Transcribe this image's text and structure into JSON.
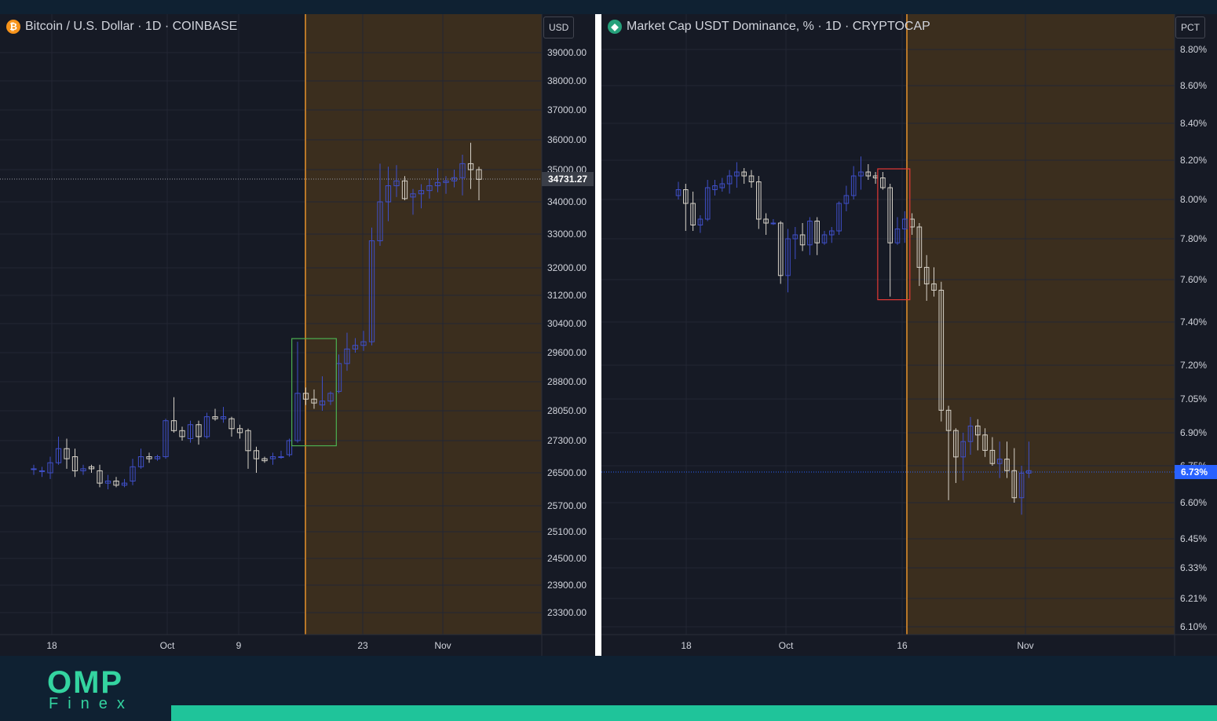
{
  "chart_data": [
    {
      "type": "candlestick",
      "title": "Bitcoin / U.S. Dollar · 1D · COINBASE",
      "unit": "USD",
      "last_price_label": "34731.27",
      "y_ticks": [
        "39000.00",
        "38000.00",
        "37000.00",
        "36000.00",
        "35000.00",
        "34000.00",
        "33000.00",
        "32000.00",
        "31200.00",
        "30400.00",
        "29600.00",
        "28800.00",
        "28050.00",
        "27300.00",
        "26500.00",
        "25700.00",
        "25100.00",
        "24500.00",
        "23900.00",
        "23300.00"
      ],
      "x_ticks": [
        "18",
        "Oct",
        "9",
        "23",
        "Nov"
      ],
      "highlight": {
        "label": "green box",
        "color": "#4caf50"
      },
      "ohlc": [
        [
          26600,
          26700,
          26450,
          26600
        ],
        [
          26550,
          26650,
          26400,
          26550
        ],
        [
          26500,
          26900,
          26350,
          26750
        ],
        [
          26750,
          27400,
          26700,
          27100
        ],
        [
          27100,
          27350,
          26600,
          26850
        ],
        [
          26900,
          27100,
          26400,
          26550
        ],
        [
          26550,
          26700,
          26450,
          26600
        ],
        [
          26650,
          26700,
          26500,
          26600
        ],
        [
          26550,
          26700,
          26150,
          26250
        ],
        [
          26250,
          26450,
          26100,
          26300
        ],
        [
          26300,
          26400,
          26150,
          26200
        ],
        [
          26200,
          26350,
          26150,
          26250
        ],
        [
          26300,
          26850,
          26200,
          26650
        ],
        [
          26650,
          27100,
          26600,
          26900
        ],
        [
          26900,
          27000,
          26750,
          26850
        ],
        [
          26850,
          26950,
          26800,
          26900
        ],
        [
          26900,
          27850,
          26850,
          27800
        ],
        [
          27800,
          28400,
          27500,
          27550
        ],
        [
          27550,
          27650,
          27300,
          27400
        ],
        [
          27350,
          27800,
          27250,
          27700
        ],
        [
          27700,
          27800,
          27200,
          27400
        ],
        [
          27400,
          28000,
          27350,
          27900
        ],
        [
          27900,
          28100,
          27800,
          27850
        ],
        [
          27850,
          28150,
          27750,
          27900
        ],
        [
          27850,
          27900,
          27400,
          27600
        ],
        [
          27600,
          27700,
          27350,
          27500
        ],
        [
          27550,
          27600,
          26600,
          27050
        ],
        [
          27050,
          27150,
          26500,
          26850
        ],
        [
          26850,
          26900,
          26750,
          26800
        ],
        [
          26850,
          27000,
          26700,
          26900
        ],
        [
          26900,
          27050,
          26850,
          26900
        ],
        [
          26950,
          27350,
          26900,
          27300
        ],
        [
          27300,
          29900,
          27250,
          28500
        ],
        [
          28500,
          28650,
          28200,
          28350
        ],
        [
          28350,
          28600,
          28100,
          28250
        ],
        [
          28200,
          28950,
          28050,
          28300
        ],
        [
          28300,
          28550,
          28200,
          28500
        ],
        [
          28550,
          29550,
          28500,
          29300
        ],
        [
          29300,
          30150,
          29100,
          29700
        ],
        [
          29700,
          30000,
          29600,
          29800
        ],
        [
          29800,
          30200,
          29650,
          29900
        ],
        [
          29900,
          33200,
          29800,
          32800
        ],
        [
          32800,
          35200,
          32650,
          34000
        ],
        [
          34000,
          35100,
          33400,
          34500
        ],
        [
          34500,
          35150,
          34150,
          34650
        ],
        [
          34650,
          34800,
          34050,
          34100
        ],
        [
          34150,
          34400,
          33600,
          34250
        ],
        [
          34250,
          34550,
          33800,
          34350
        ],
        [
          34350,
          34700,
          34100,
          34500
        ],
        [
          34500,
          35050,
          34300,
          34600
        ],
        [
          34600,
          34800,
          34250,
          34650
        ],
        [
          34650,
          35000,
          34450,
          34750
        ],
        [
          34750,
          35500,
          34200,
          35200
        ],
        [
          35200,
          35900,
          34400,
          35000
        ],
        [
          35000,
          35100,
          34050,
          34700
        ]
      ]
    },
    {
      "type": "candlestick",
      "title": "Market Cap USDT Dominance, % · 1D · CRYPTOCAP",
      "unit": "PCT",
      "last_price_label": "6.73%",
      "y_ticks": [
        "8.80%",
        "8.60%",
        "8.40%",
        "8.20%",
        "8.00%",
        "7.80%",
        "7.60%",
        "7.40%",
        "7.20%",
        "7.05%",
        "6.90%",
        "6.75%",
        "6.60%",
        "6.45%",
        "6.33%",
        "6.21%",
        "6.10%"
      ],
      "x_ticks": [
        "18",
        "Oct",
        "16",
        "Nov"
      ],
      "highlight": {
        "label": "red box",
        "color": "#e53935"
      },
      "ohlc": [
        [
          8.02,
          8.09,
          8.0,
          8.05
        ],
        [
          8.05,
          8.08,
          7.84,
          7.98
        ],
        [
          7.98,
          8.04,
          7.84,
          7.87
        ],
        [
          7.87,
          7.92,
          7.83,
          7.9
        ],
        [
          7.9,
          8.1,
          7.89,
          8.06
        ],
        [
          8.05,
          8.1,
          8.02,
          8.07
        ],
        [
          8.06,
          8.11,
          8.04,
          8.08
        ],
        [
          8.08,
          8.15,
          8.03,
          8.12
        ],
        [
          8.12,
          8.19,
          8.06,
          8.14
        ],
        [
          8.14,
          8.16,
          8.08,
          8.12
        ],
        [
          8.12,
          8.15,
          8.06,
          8.09
        ],
        [
          8.09,
          8.12,
          7.85,
          7.9
        ],
        [
          7.9,
          7.93,
          7.82,
          7.88
        ],
        [
          7.88,
          7.9,
          7.87,
          7.88
        ],
        [
          7.88,
          7.89,
          7.58,
          7.62
        ],
        [
          7.62,
          7.85,
          7.54,
          7.8
        ],
        [
          7.8,
          7.86,
          7.7,
          7.82
        ],
        [
          7.82,
          7.88,
          7.74,
          7.77
        ],
        [
          7.77,
          7.91,
          7.72,
          7.89
        ],
        [
          7.89,
          7.91,
          7.72,
          7.78
        ],
        [
          7.78,
          7.84,
          7.77,
          7.82
        ],
        [
          7.82,
          7.86,
          7.78,
          7.84
        ],
        [
          7.84,
          7.99,
          7.82,
          7.98
        ],
        [
          7.98,
          8.07,
          7.94,
          8.02
        ],
        [
          8.02,
          8.17,
          8.0,
          8.12
        ],
        [
          8.12,
          8.22,
          8.05,
          8.14
        ],
        [
          8.14,
          8.18,
          8.1,
          8.12
        ],
        [
          8.12,
          8.14,
          8.08,
          8.11
        ],
        [
          8.11,
          8.14,
          8.05,
          8.06
        ],
        [
          8.06,
          8.08,
          7.52,
          7.78
        ],
        [
          7.78,
          7.91,
          7.77,
          7.85
        ],
        [
          7.85,
          7.94,
          7.78,
          7.9
        ],
        [
          7.9,
          7.93,
          7.82,
          7.86
        ],
        [
          7.86,
          7.88,
          7.57,
          7.66
        ],
        [
          7.66,
          7.72,
          7.5,
          7.58
        ],
        [
          7.58,
          7.66,
          7.52,
          7.55
        ],
        [
          7.55,
          7.59,
          6.95,
          7.0
        ],
        [
          7.0,
          7.02,
          6.61,
          6.91
        ],
        [
          6.91,
          6.92,
          6.68,
          6.79
        ],
        [
          6.79,
          6.9,
          6.69,
          6.86
        ],
        [
          6.86,
          6.97,
          6.8,
          6.93
        ],
        [
          6.93,
          6.96,
          6.82,
          6.89
        ],
        [
          6.89,
          6.92,
          6.79,
          6.82
        ],
        [
          6.82,
          6.88,
          6.75,
          6.76
        ],
        [
          6.76,
          6.86,
          6.7,
          6.78
        ],
        [
          6.78,
          6.86,
          6.7,
          6.73
        ],
        [
          6.73,
          6.83,
          6.6,
          6.62
        ],
        [
          6.62,
          6.75,
          6.55,
          6.72
        ],
        [
          6.72,
          6.86,
          6.7,
          6.73
        ]
      ]
    }
  ],
  "colors": {
    "background": "#161a25",
    "grid": "#232634",
    "future_zone": "#3b2e1e",
    "vline": "#e8922b",
    "bull": "#3f4fc8",
    "bear": "#d7d2c8",
    "axis_text": "#d1d4dc"
  },
  "brand": {
    "line1": "OMP",
    "line2": "Finex"
  }
}
